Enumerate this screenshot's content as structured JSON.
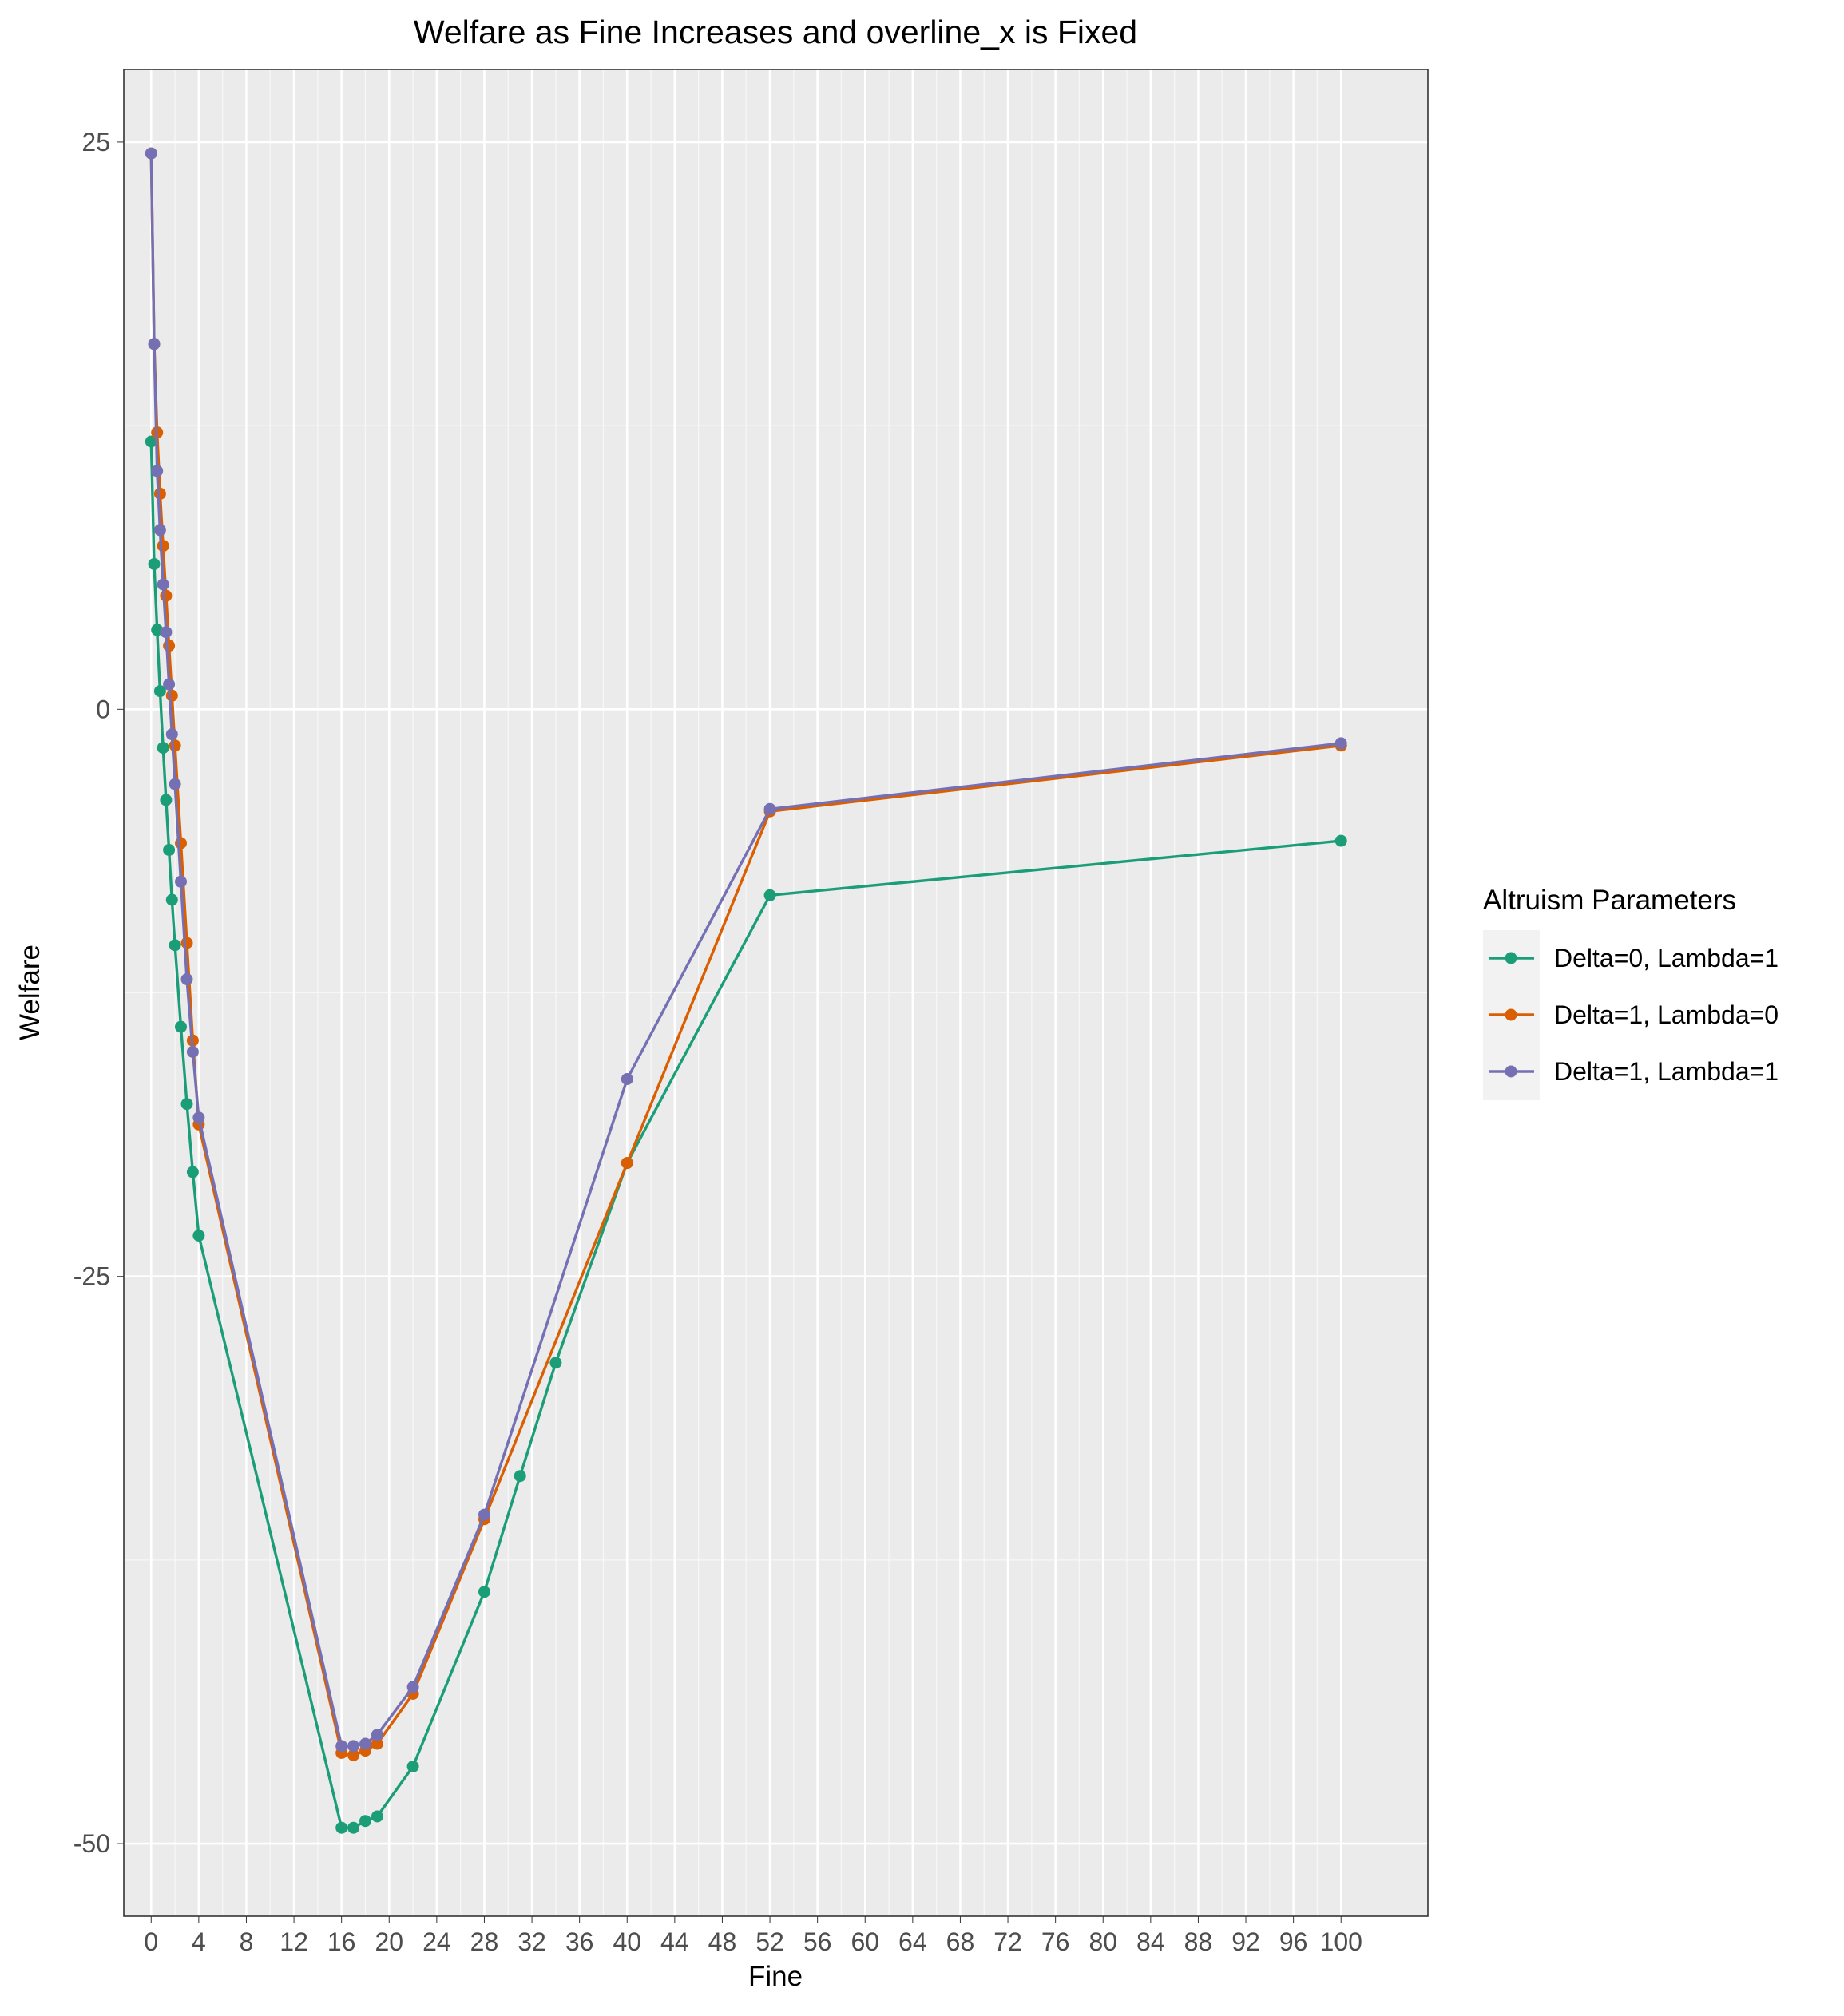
{
  "chart_data": {
    "type": "line",
    "title": "Welfare as Fine Increases and overline_x is Fixed",
    "xlabel": "Fine",
    "ylabel": "Welfare",
    "xlim": [
      -2.3,
      107.3
    ],
    "ylim": [
      -53.2,
      28.2
    ],
    "x_ticks": [
      0,
      4,
      8,
      12,
      16,
      20,
      24,
      28,
      32,
      36,
      40,
      44,
      48,
      52,
      56,
      60,
      64,
      68,
      72,
      76,
      80,
      84,
      88,
      92,
      96,
      100
    ],
    "x_tick_labels": [
      "0",
      "4",
      "8",
      "12",
      "16",
      "20",
      "24",
      "28",
      "32",
      "36",
      "40",
      "44",
      "48",
      "52",
      "56",
      "60",
      "64",
      "68",
      "72",
      "76",
      "80",
      "84",
      "88",
      "92",
      "96",
      "100"
    ],
    "y_ticks": [
      25,
      0,
      -25,
      -50
    ],
    "y_tick_labels": [
      "25",
      "0",
      "-25",
      "-50"
    ],
    "grid": true,
    "legend": {
      "title": "Altruism Parameters",
      "position": "right"
    },
    "series": [
      {
        "name": "Delta=0, Lambda=1",
        "color": "#1b9e77",
        "points": [
          [
            0,
            11.8
          ],
          [
            0.25,
            6.4
          ],
          [
            0.5,
            3.5
          ],
          [
            0.75,
            0.8
          ],
          [
            1.0,
            -1.7
          ],
          [
            1.25,
            -4.0
          ],
          [
            1.5,
            -6.2
          ],
          [
            1.75,
            -8.4
          ],
          [
            2.0,
            -10.4
          ],
          [
            2.5,
            -14.0
          ],
          [
            3.0,
            -17.4
          ],
          [
            3.5,
            -20.4
          ],
          [
            4.0,
            -23.2
          ],
          [
            16,
            -49.3
          ],
          [
            17,
            -49.3
          ],
          [
            18,
            -49.0
          ],
          [
            19,
            -48.8
          ],
          [
            22,
            -46.6
          ],
          [
            28,
            -38.9
          ],
          [
            31,
            -33.8
          ],
          [
            34,
            -28.8
          ],
          [
            40,
            -20.0
          ],
          [
            52,
            -8.2
          ],
          [
            100,
            -5.8
          ]
        ]
      },
      {
        "name": "Delta=1, Lambda=0",
        "color": "#d95f02",
        "points": [
          [
            0,
            24.5
          ],
          [
            0.25,
            16.1
          ],
          [
            0.5,
            12.2
          ],
          [
            0.75,
            9.5
          ],
          [
            1.0,
            7.2
          ],
          [
            1.25,
            5.0
          ],
          [
            1.5,
            2.8
          ],
          [
            1.75,
            0.6
          ],
          [
            2.0,
            -1.6
          ],
          [
            2.5,
            -5.9
          ],
          [
            3.0,
            -10.3
          ],
          [
            3.5,
            -14.6
          ],
          [
            4.0,
            -18.3
          ],
          [
            16,
            -46.0
          ],
          [
            17,
            -46.1
          ],
          [
            18,
            -45.9
          ],
          [
            19,
            -45.6
          ],
          [
            22,
            -43.4
          ],
          [
            28,
            -35.7
          ],
          [
            40,
            -20.0
          ],
          [
            52,
            -4.5
          ],
          [
            100,
            -1.6
          ]
        ]
      },
      {
        "name": "Delta=1, Lambda=1",
        "color": "#7570b3",
        "points": [
          [
            0,
            24.5
          ],
          [
            0.25,
            16.1
          ],
          [
            0.5,
            10.5
          ],
          [
            0.75,
            7.9
          ],
          [
            1.0,
            5.5
          ],
          [
            1.25,
            3.4
          ],
          [
            1.5,
            1.1
          ],
          [
            1.75,
            -1.1
          ],
          [
            2.0,
            -3.3
          ],
          [
            2.5,
            -7.6
          ],
          [
            3.0,
            -11.9
          ],
          [
            3.5,
            -15.1
          ],
          [
            4.0,
            -18.0
          ],
          [
            16,
            -45.7
          ],
          [
            17,
            -45.7
          ],
          [
            18,
            -45.6
          ],
          [
            19,
            -45.2
          ],
          [
            22,
            -43.1
          ],
          [
            28,
            -35.5
          ],
          [
            40,
            -16.3
          ],
          [
            52,
            -4.4
          ],
          [
            100,
            -1.5
          ]
        ]
      }
    ]
  }
}
